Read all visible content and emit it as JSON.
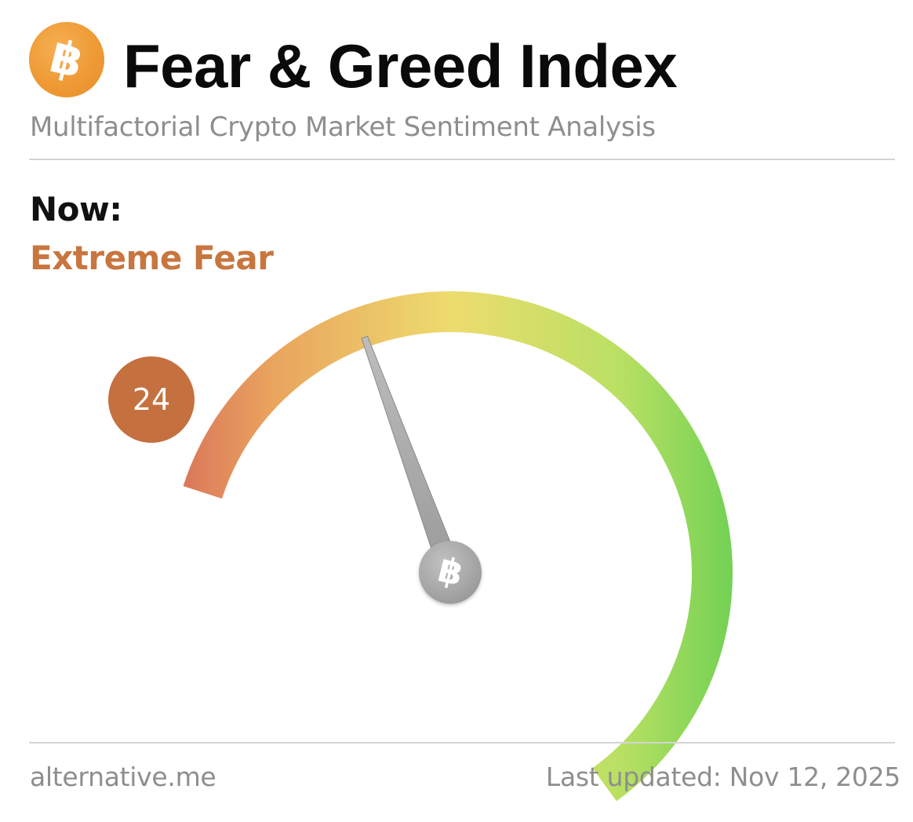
{
  "header": {
    "logo_icon": "bitcoin-icon",
    "title": "Fear & Greed Index",
    "subtitle": "Multifactorial Crypto Market Sentiment Analysis"
  },
  "current": {
    "label": "Now:",
    "classification": "Extreme Fear",
    "value": "24"
  },
  "gauge": {
    "min": 0,
    "max": 100,
    "value": 24,
    "hub_icon": "bitcoin-icon",
    "colors": {
      "fear": "#d9705a",
      "neutral": "#eddc6e",
      "greed": "#72d154",
      "badge": "#c4703f",
      "classification_text": "#c8763f"
    }
  },
  "footer": {
    "source": "alternative.me",
    "updated": "Last updated: Nov 12, 2025"
  }
}
